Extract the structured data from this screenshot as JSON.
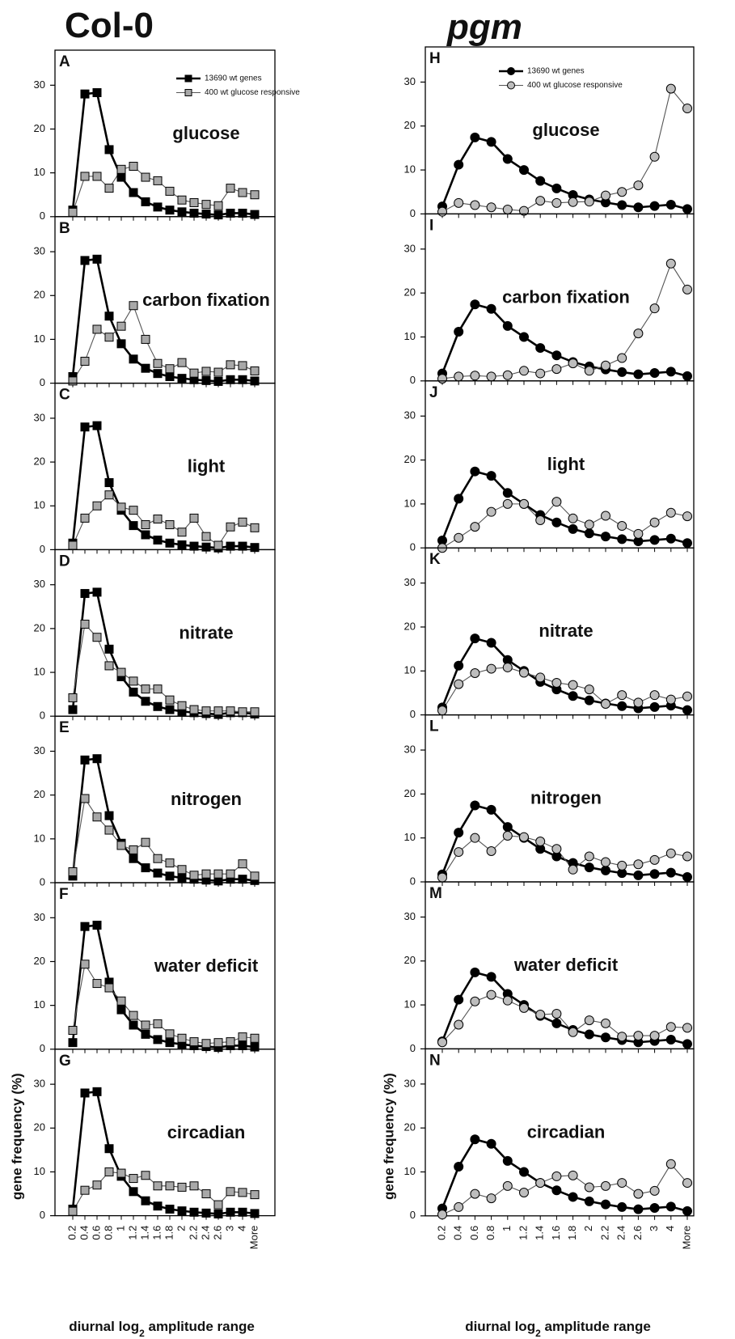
{
  "columns": [
    "Col-0",
    "pgm"
  ],
  "categories": [
    "0.2",
    "0.4",
    "0.6",
    "0.8",
    "1",
    "1.2",
    "1.4",
    "1.6",
    "1.8",
    "2",
    "2.2",
    "2.4",
    "2.6",
    "3",
    "4",
    "More"
  ],
  "x_label": [
    "diurnal log",
    "2",
    " amplitude range"
  ],
  "y_label": "gene frequency (%)",
  "ylim": [
    0,
    38
  ],
  "yticks": [
    0,
    10,
    20,
    30
  ],
  "chart_data": [
    {
      "type": "line",
      "panel": "A",
      "title": "glucose",
      "series": [
        {
          "name": "13690 wt genes",
          "color": "#000000",
          "marker": "square",
          "values": [
            1.5,
            28,
            28.3,
            15.3,
            9,
            5.5,
            3.4,
            2.2,
            1.5,
            1.1,
            0.8,
            0.6,
            0.4,
            0.8,
            0.8,
            0.5
          ]
        },
        {
          "name": "400 wt glucose responsive",
          "color": "#a8a8a8",
          "marker": "square",
          "values": [
            1,
            9.2,
            9.2,
            6.5,
            10.8,
            11.5,
            9,
            8.2,
            5.8,
            3.8,
            3.2,
            2.8,
            2.5,
            6.5,
            5.5,
            5
          ]
        }
      ]
    },
    {
      "type": "line",
      "panel": "B",
      "title": "carbon fixation",
      "series": [
        {
          "color": "#000000",
          "marker": "square",
          "values": [
            1.5,
            28,
            28.3,
            15.3,
            9,
            5.5,
            3.4,
            2.2,
            1.5,
            1.1,
            0.8,
            0.6,
            0.4,
            0.8,
            0.8,
            0.5
          ]
        },
        {
          "color": "#a8a8a8",
          "marker": "square",
          "values": [
            0.5,
            5,
            12.3,
            10.5,
            13,
            17.7,
            10,
            4.5,
            3.3,
            4.7,
            2.3,
            2.7,
            2.5,
            4.2,
            4,
            2.8
          ]
        }
      ]
    },
    {
      "type": "line",
      "panel": "C",
      "title": "light",
      "series": [
        {
          "color": "#000000",
          "marker": "square",
          "values": [
            1.5,
            28,
            28.3,
            15.3,
            9,
            5.5,
            3.4,
            2.2,
            1.5,
            1.1,
            0.8,
            0.6,
            0.4,
            0.8,
            0.8,
            0.5
          ]
        },
        {
          "color": "#a8a8a8",
          "marker": "square",
          "values": [
            1,
            7.2,
            10,
            12.5,
            9.7,
            9,
            5.7,
            7,
            5.7,
            4,
            7.2,
            3,
            1,
            5.2,
            6.3,
            5
          ]
        }
      ]
    },
    {
      "type": "line",
      "panel": "D",
      "title": "nitrate",
      "series": [
        {
          "color": "#000000",
          "marker": "square",
          "values": [
            1.5,
            28,
            28.3,
            15.3,
            9,
            5.5,
            3.4,
            2.2,
            1.5,
            1.1,
            0.8,
            0.6,
            0.4,
            0.8,
            0.8,
            0.5
          ]
        },
        {
          "color": "#a8a8a8",
          "marker": "square",
          "values": [
            4.2,
            21,
            18,
            11.5,
            10,
            8,
            6.2,
            6.2,
            3.7,
            2.4,
            1.5,
            1.2,
            1.2,
            1.2,
            1,
            1
          ]
        }
      ]
    },
    {
      "type": "line",
      "panel": "E",
      "title": "nitrogen",
      "series": [
        {
          "color": "#000000",
          "marker": "square",
          "values": [
            1.5,
            28,
            28.3,
            15.3,
            9,
            5.5,
            3.4,
            2.2,
            1.5,
            1.1,
            0.8,
            0.6,
            0.4,
            0.8,
            0.8,
            0.5
          ]
        },
        {
          "color": "#a8a8a8",
          "marker": "square",
          "values": [
            2.5,
            19.2,
            15,
            12,
            8.5,
            7.5,
            9.2,
            5.5,
            4.5,
            3,
            1.7,
            2,
            2,
            2,
            4.3,
            1.5
          ]
        }
      ]
    },
    {
      "type": "line",
      "panel": "F",
      "title": "water deficit",
      "series": [
        {
          "color": "#000000",
          "marker": "square",
          "values": [
            1.5,
            28,
            28.3,
            15.3,
            9,
            5.5,
            3.4,
            2.2,
            1.5,
            1.1,
            0.8,
            0.6,
            0.4,
            0.8,
            0.8,
            0.5
          ]
        },
        {
          "color": "#a8a8a8",
          "marker": "square",
          "values": [
            4.3,
            19.4,
            15,
            14,
            11,
            7.7,
            5.5,
            5.8,
            3.5,
            2.5,
            1.7,
            1.3,
            1.5,
            1.7,
            2.8,
            2.5
          ]
        }
      ]
    },
    {
      "type": "line",
      "panel": "G",
      "title": "circadian",
      "series": [
        {
          "color": "#000000",
          "marker": "square",
          "values": [
            1.5,
            28,
            28.3,
            15.3,
            9,
            5.5,
            3.4,
            2.2,
            1.5,
            1.1,
            0.8,
            0.6,
            0.4,
            0.8,
            0.8,
            0.5
          ]
        },
        {
          "color": "#a8a8a8",
          "marker": "square",
          "values": [
            1,
            5.8,
            7,
            10,
            9.7,
            8.5,
            9.2,
            6.8,
            6.8,
            6.5,
            6.8,
            5,
            2.5,
            5.5,
            5.3,
            4.8
          ]
        }
      ]
    },
    {
      "type": "line",
      "panel": "H",
      "title": "glucose",
      "series": [
        {
          "name": "13690 wt genes",
          "color": "#000000",
          "marker": "circle",
          "values": [
            1.7,
            11.2,
            17.4,
            16.4,
            12.5,
            10,
            7.5,
            5.8,
            4.3,
            3.3,
            2.6,
            2,
            1.5,
            1.8,
            2.1,
            1.1
          ]
        },
        {
          "name": "400 wt glucose responsive",
          "color": "#bdbdbd",
          "marker": "circle",
          "values": [
            0.5,
            2.5,
            2,
            1.5,
            1,
            0.7,
            3,
            2.5,
            2.7,
            2.8,
            4.2,
            5,
            6.5,
            13,
            28.5,
            24
          ]
        }
      ]
    },
    {
      "type": "line",
      "panel": "I",
      "title": "carbon fixation",
      "series": [
        {
          "color": "#000000",
          "marker": "circle",
          "values": [
            1.7,
            11.2,
            17.4,
            16.4,
            12.5,
            10,
            7.5,
            5.8,
            4.3,
            3.3,
            2.6,
            2,
            1.5,
            1.8,
            2.1,
            1.1
          ]
        },
        {
          "color": "#bdbdbd",
          "marker": "circle",
          "values": [
            0.5,
            1,
            1.2,
            1,
            1.3,
            2.3,
            1.7,
            2.7,
            4,
            2.3,
            3.5,
            5.2,
            10.8,
            16.5,
            26.7,
            20.8
          ]
        }
      ]
    },
    {
      "type": "line",
      "panel": "J",
      "title": "light",
      "series": [
        {
          "color": "#000000",
          "marker": "circle",
          "values": [
            1.7,
            11.2,
            17.4,
            16.4,
            12.5,
            10,
            7.5,
            5.8,
            4.3,
            3.3,
            2.6,
            2,
            1.5,
            1.8,
            2.1,
            1.1
          ]
        },
        {
          "color": "#bdbdbd",
          "marker": "circle",
          "values": [
            0,
            2.3,
            4.8,
            8.2,
            10,
            10,
            6.3,
            10.5,
            6.7,
            5.3,
            7.3,
            5,
            3.2,
            5.8,
            8,
            7.2
          ]
        }
      ]
    },
    {
      "type": "line",
      "panel": "K",
      "title": "nitrate",
      "series": [
        {
          "color": "#000000",
          "marker": "circle",
          "values": [
            1.7,
            11.2,
            17.4,
            16.4,
            12.5,
            10,
            7.5,
            5.8,
            4.3,
            3.3,
            2.6,
            2,
            1.5,
            1.8,
            2.1,
            1.1
          ]
        },
        {
          "color": "#bdbdbd",
          "marker": "circle",
          "values": [
            1,
            7,
            9.5,
            10.5,
            10.8,
            9.6,
            8.5,
            7.3,
            6.8,
            5.8,
            2.5,
            4.5,
            2.8,
            4.5,
            3.5,
            4.2
          ]
        }
      ]
    },
    {
      "type": "line",
      "panel": "L",
      "title": "nitrogen",
      "series": [
        {
          "color": "#000000",
          "marker": "circle",
          "values": [
            1.7,
            11.2,
            17.4,
            16.4,
            12.5,
            10,
            7.5,
            5.8,
            4.3,
            3.3,
            2.6,
            2,
            1.5,
            1.8,
            2.1,
            1.1
          ]
        },
        {
          "color": "#bdbdbd",
          "marker": "circle",
          "values": [
            1,
            6.8,
            10,
            7,
            10.5,
            10.2,
            9.2,
            7.5,
            2.8,
            5.8,
            4.5,
            3.7,
            4,
            5,
            6.5,
            5.8
          ]
        }
      ]
    },
    {
      "type": "line",
      "panel": "M",
      "title": "water deficit",
      "series": [
        {
          "color": "#000000",
          "marker": "circle",
          "values": [
            1.7,
            11.2,
            17.4,
            16.4,
            12.5,
            10,
            7.5,
            5.8,
            4.3,
            3.3,
            2.6,
            2,
            1.5,
            1.8,
            2.1,
            1.1
          ]
        },
        {
          "color": "#bdbdbd",
          "marker": "circle",
          "values": [
            1.5,
            5.5,
            10.8,
            12.3,
            11,
            9.3,
            7.8,
            8,
            3.8,
            6.5,
            5.8,
            2.8,
            3,
            3,
            5,
            4.8
          ]
        }
      ]
    },
    {
      "type": "line",
      "panel": "N",
      "title": "circadian",
      "series": [
        {
          "color": "#000000",
          "marker": "circle",
          "values": [
            1.7,
            11.2,
            17.4,
            16.4,
            12.5,
            10,
            7.5,
            5.8,
            4.3,
            3.3,
            2.6,
            2,
            1.5,
            1.8,
            2.1,
            1.1
          ]
        },
        {
          "color": "#bdbdbd",
          "marker": "circle",
          "values": [
            0.3,
            2,
            5,
            4,
            6.8,
            5.3,
            7.5,
            9,
            9.2,
            6.5,
            6.8,
            7.5,
            5,
            5.7,
            11.8,
            7.5
          ]
        }
      ]
    }
  ]
}
